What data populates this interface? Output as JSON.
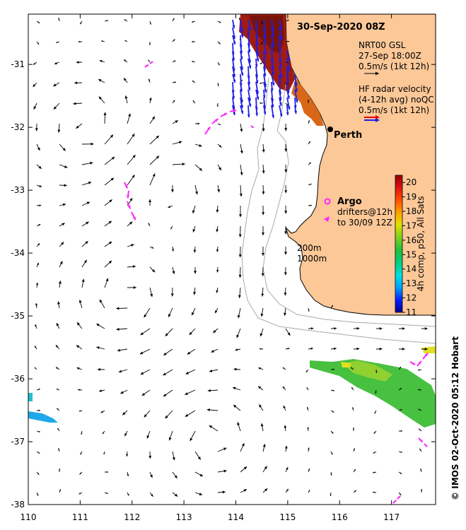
{
  "title": "30-Sep-2020 08Z",
  "place_label": "Perth",
  "legend": {
    "model_lines": [
      "NRT00 GSL",
      "27-Sep 18:00Z",
      "0.5m/s (1kt 12h)"
    ],
    "radar_lines": [
      "HF radar velocity",
      "(4-12h avg) noQC",
      "0.5m/s (1kt 12h)"
    ],
    "argo_label": "Argo",
    "drifter_lines": [
      "drifters@12h",
      "to 30/09 12Z"
    ],
    "contour_lines": [
      "200m",
      "1000m"
    ]
  },
  "colorbar": {
    "label": "4h comp, p50, All Sats",
    "min": 11,
    "max": 20.5,
    "ticks": [
      "11",
      "12",
      "13",
      "14",
      "15",
      "16",
      "17",
      "18",
      "19",
      "20"
    ]
  },
  "credit": "© IMOS 02-Oct-2020 05:12 Hobart",
  "axes": {
    "x_ticks": [
      "110",
      "111",
      "112",
      "113",
      "114",
      "115",
      "116",
      "117"
    ],
    "y_ticks": [
      "-31",
      "-32",
      "-33",
      "-34",
      "-35",
      "-36",
      "-37",
      "-38"
    ],
    "lon_range": [
      110,
      117.85
    ],
    "lat_range": [
      -38,
      -30.2
    ]
  },
  "colors": {
    "land": "#fcc898",
    "model_arrow": "#000000",
    "radar_arrow": "#1e1ee6",
    "radar_scale_red": "#e60000",
    "drifter": "#ff22ff",
    "contour": "#aaaaaa"
  },
  "colorbar_stops": [
    "#000090",
    "#0020ff",
    "#00a0ff",
    "#00e0e0",
    "#00d080",
    "#20c040",
    "#80d020",
    "#e0e000",
    "#ffa000",
    "#ff5000",
    "#e01010",
    "#900000"
  ],
  "icons": [
    "perth-marker-icon",
    "argo-marker-icon",
    "drifter-arrow-icon",
    "model-arrow-icon",
    "radar-arrow-icon"
  ]
}
